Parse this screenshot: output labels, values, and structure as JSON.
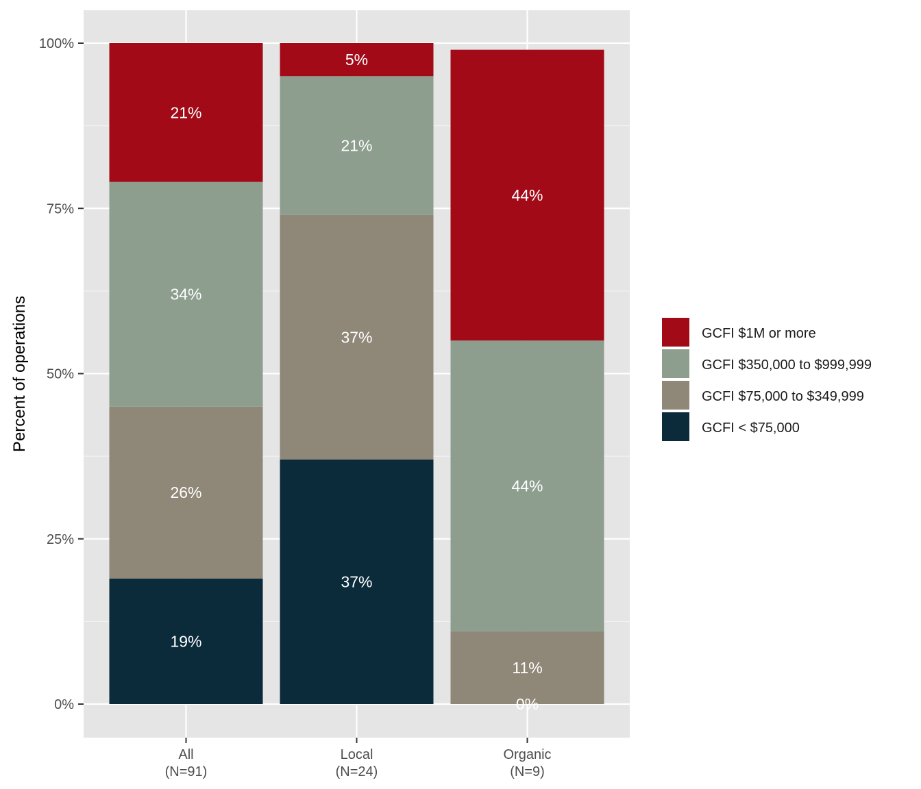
{
  "chart_data": {
    "type": "bar",
    "stacked": true,
    "categories": [
      "All\n(N=91)",
      "Local\n(N=24)",
      "Organic\n(N=9)"
    ],
    "series": [
      {
        "name": "GCFI < $75,000",
        "values": [
          19,
          37,
          0
        ],
        "labels": [
          "19%",
          "37%",
          "0%"
        ],
        "color": "#0b2b3b"
      },
      {
        "name": "GCFI $75,000 to $349,999",
        "values": [
          26,
          37,
          11
        ],
        "labels": [
          "26%",
          "37%",
          "11%"
        ],
        "color": "#8f8777"
      },
      {
        "name": "GCFI $350,000 to $999,999",
        "values": [
          34,
          21,
          44
        ],
        "labels": [
          "34%",
          "21%",
          "44%"
        ],
        "color": "#8d9e8f"
      },
      {
        "name": "GCFI $1M or more",
        "values": [
          21,
          5,
          44
        ],
        "labels": [
          "21%",
          "5%",
          "44%"
        ],
        "color": "#a20a18"
      }
    ],
    "legend_order": [
      "GCFI $1M or more",
      "GCFI $350,000 to $999,999",
      "GCFI $75,000 to $349,999",
      "GCFI < $75,000"
    ],
    "ylabel": "Percent of operations",
    "xlabel": "",
    "ylim": [
      0,
      100
    ],
    "yticks": [
      0,
      25,
      50,
      75,
      100
    ],
    "ytick_labels": [
      "0%",
      "25%",
      "50%",
      "75%",
      "100%"
    ],
    "grid": true,
    "legend_position": "right"
  }
}
